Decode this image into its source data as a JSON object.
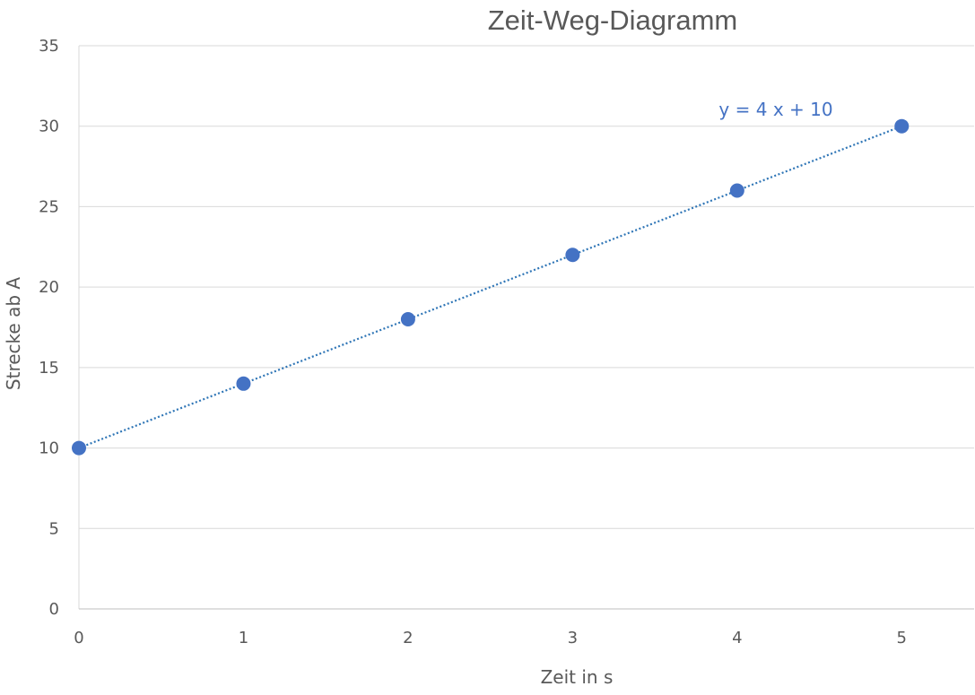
{
  "chart_data": {
    "type": "scatter",
    "title": "Zeit-Weg-Diagramm",
    "xlabel": "Zeit in s",
    "ylabel": "Strecke ab A",
    "xlim": [
      0,
      5.44
    ],
    "ylim": [
      0,
      35
    ],
    "xticks": [
      "0",
      "1",
      "2",
      "3",
      "4",
      "5"
    ],
    "yticks": [
      "0",
      "5",
      "10",
      "15",
      "20",
      "25",
      "30",
      "35"
    ],
    "grid": true,
    "legend": "none",
    "series": [
      {
        "x": [
          0,
          1,
          2,
          3,
          4,
          5
        ],
        "y": [
          10,
          14,
          18,
          22,
          26,
          30
        ],
        "color": "#4472C4"
      }
    ],
    "trendline": {
      "type": "linear",
      "slope": 4,
      "intercept": 10,
      "style": "dotted",
      "color": "#2E75B6",
      "equation_label": "y = 4 x + 10"
    }
  }
}
